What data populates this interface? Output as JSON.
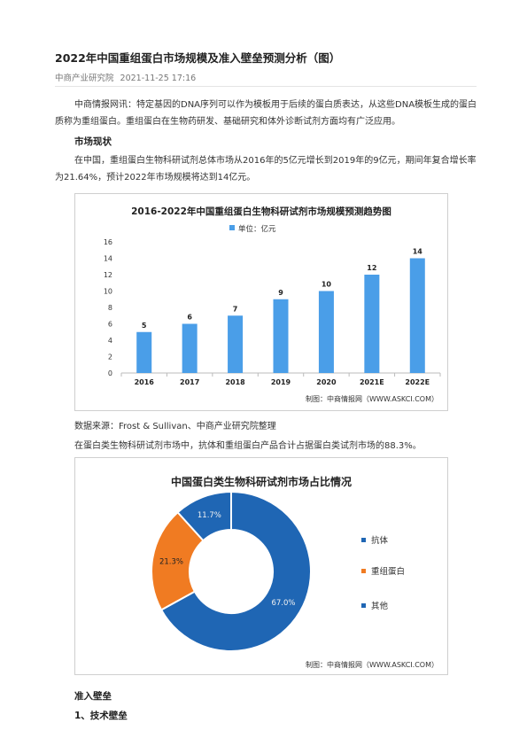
{
  "article": {
    "title": "2022年中国重组蛋白市场规模及准入壁垒预测分析（图）",
    "source": "中商产业研究院",
    "date": "2021-11-25 17:16",
    "intro": "中商情报网讯：特定基因的DNA序列可以作为模板用于后续的蛋白质表达，从这些DNA模板生成的蛋白质称为重组蛋白。重组蛋白在生物药研发、基础研究和体外诊断试剂方面均有广泛应用。",
    "section_market": "市场现状",
    "market_para": "在中国，重组蛋白生物科研试剂总体市场从2016年的5亿元增长到2019年的9亿元，期间年复合增长率为21.64%，预计2022年市场规模将达到14亿元。",
    "data_source": "数据来源：Frost & Sullivan、中商产业研究院整理",
    "share_para": "在蛋白类生物科研试剂市场中，抗体和重组蛋白产品合计占据蛋白类试剂市场的88.3%。",
    "section_barrier": "准入壁垒",
    "section_tech": "1、技术壁垒"
  },
  "chart_data": [
    {
      "type": "bar",
      "title": "2016-2022年中国重组蛋白生物科研试剂市场规模预测趋势图",
      "legend": "单位：亿元",
      "categories": [
        "2016",
        "2017",
        "2018",
        "2019",
        "2020",
        "2021E",
        "2022E"
      ],
      "values": [
        5,
        6,
        7,
        9,
        10,
        12,
        14
      ],
      "ylim": [
        0,
        16
      ],
      "yticks": [
        "0",
        "2",
        "4",
        "6",
        "8",
        "10",
        "12",
        "14",
        "16"
      ],
      "color": "#4a9ee8",
      "footer": "制图：中商情报网（WWW.ASKCI.COM）"
    },
    {
      "type": "pie",
      "title": "中国蛋白类生物科研试剂市场占比情况",
      "labels": [
        "抗体",
        "重组蛋白",
        "其他"
      ],
      "values": [
        67.0,
        21.3,
        11.7
      ],
      "value_labels": [
        "67.0%",
        "21.3%",
        "11.7%"
      ],
      "colors": [
        "#1f66b4",
        "#f07b22",
        "#1f66b4"
      ],
      "footer": "制图：中商情报网（WWW.ASKCI.COM）"
    }
  ],
  "watermark": "中商产业研究院"
}
